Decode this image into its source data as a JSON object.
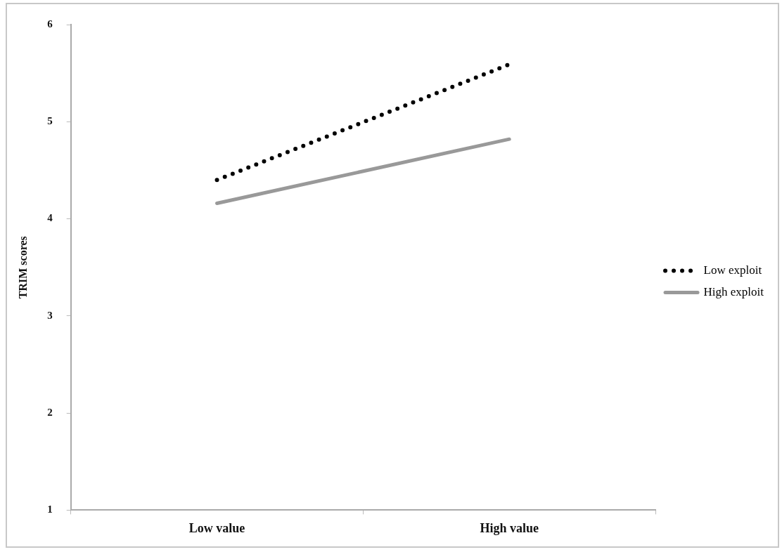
{
  "chart_data": {
    "type": "line",
    "ylabel": "TRIM scores",
    "categories": [
      "Low value",
      "High value"
    ],
    "series": [
      {
        "name": "Low exploit",
        "color": "#000000",
        "values": [
          4.4,
          5.59
        ],
        "line_style": "dotted"
      },
      {
        "name": "High exploit",
        "color": "#999999",
        "values": [
          4.16,
          4.82
        ],
        "line_style": "solid"
      }
    ],
    "ylim": [
      1,
      6
    ],
    "yticks": [
      1,
      2,
      3,
      4,
      5,
      6
    ],
    "grid": false,
    "legend": "right",
    "marker": "none"
  }
}
